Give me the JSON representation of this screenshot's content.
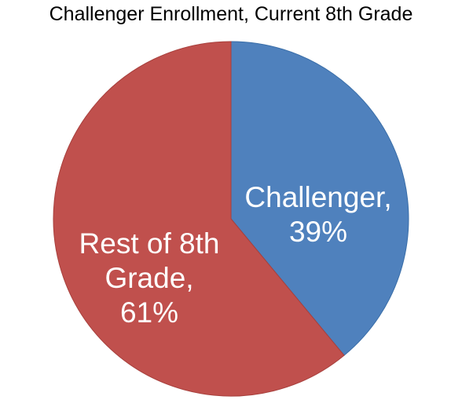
{
  "chart_data": {
    "type": "pie",
    "title": "Challenger Enrollment, Current 8th Grade",
    "slices": [
      {
        "label": "Challenger",
        "value": 39,
        "display": "39%",
        "label_lines": [
          "Challenger,",
          "39%"
        ],
        "color": "#4F81BD"
      },
      {
        "label": "Rest of 8th Grade",
        "value": 61,
        "display": "61%",
        "label_lines": [
          "Rest of 8th",
          "Grade,",
          "61%"
        ],
        "color": "#C0504D"
      }
    ],
    "legend": "none",
    "start_angle": "12 o'clock",
    "direction": "clockwise"
  }
}
